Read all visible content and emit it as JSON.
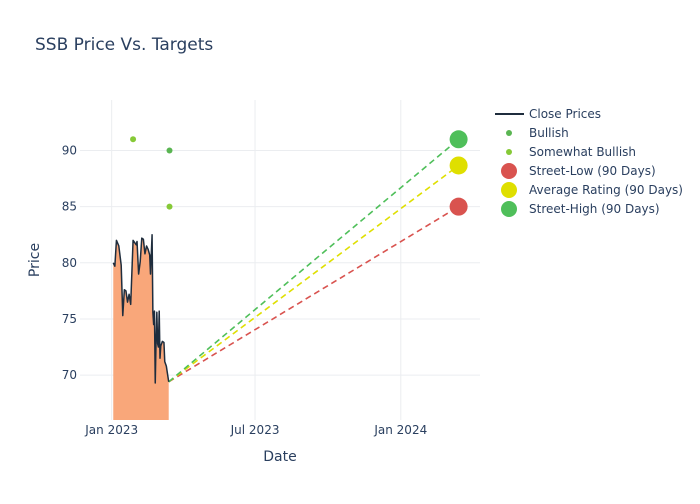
{
  "chart_data": {
    "type": "line",
    "title": "SSB Price Vs. Targets",
    "xlabel": "Date",
    "ylabel": "Price",
    "x_ticks": [
      "Jan 2023",
      "Jul 2023",
      "Jan 2024"
    ],
    "x_tick_dates": [
      "2023-01-01",
      "2023-07-01",
      "2024-01-01"
    ],
    "y_ticks": [
      70,
      75,
      80,
      85,
      90
    ],
    "xlim": [
      "2022-11-22",
      "2024-04-10"
    ],
    "ylim": [
      66,
      94.5
    ],
    "grid": true,
    "legend_position": "right",
    "colors": {
      "close_line": "#1f2d3d",
      "close_fill": "#f9a77a",
      "bullish": "#5ab552",
      "somewhat_bullish": "#86c937",
      "street_low": "#d9534f",
      "average": "#dfdf00",
      "street_high": "#4fbf5a"
    },
    "series": [
      {
        "name": "Close Prices",
        "kind": "line-area",
        "points": [
          [
            "2023-01-03",
            80.0
          ],
          [
            "2023-01-05",
            79.7
          ],
          [
            "2023-01-07",
            82.0
          ],
          [
            "2023-01-10",
            81.5
          ],
          [
            "2023-01-13",
            79.8
          ],
          [
            "2023-01-15",
            75.3
          ],
          [
            "2023-01-17",
            77.6
          ],
          [
            "2023-01-19",
            77.5
          ],
          [
            "2023-01-21",
            76.5
          ],
          [
            "2023-01-23",
            77.2
          ],
          [
            "2023-01-25",
            76.3
          ],
          [
            "2023-01-28",
            82.0
          ],
          [
            "2023-01-30",
            81.8
          ],
          [
            "2023-02-01",
            81.6
          ],
          [
            "2023-02-02",
            81.9
          ],
          [
            "2023-02-04",
            79.0
          ],
          [
            "2023-02-06",
            80.1
          ],
          [
            "2023-02-08",
            82.2
          ],
          [
            "2023-02-10",
            82.1
          ],
          [
            "2023-02-12",
            80.8
          ],
          [
            "2023-02-14",
            81.5
          ],
          [
            "2023-02-16",
            81.2
          ],
          [
            "2023-02-18",
            80.7
          ],
          [
            "2023-02-19",
            79.0
          ],
          [
            "2023-02-21",
            82.5
          ],
          [
            "2023-02-22",
            75.6
          ],
          [
            "2023-02-23",
            74.5
          ],
          [
            "2023-02-24",
            75.7
          ],
          [
            "2023-02-25",
            69.3
          ],
          [
            "2023-02-26",
            73.0
          ],
          [
            "2023-02-27",
            75.6
          ],
          [
            "2023-02-28",
            72.8
          ],
          [
            "2023-03-01",
            72.5
          ],
          [
            "2023-03-02",
            75.7
          ],
          [
            "2023-03-03",
            71.5
          ],
          [
            "2023-03-04",
            72.6
          ],
          [
            "2023-03-06",
            73.0
          ],
          [
            "2023-03-08",
            72.9
          ],
          [
            "2023-03-09",
            71.2
          ],
          [
            "2023-03-11",
            70.8
          ],
          [
            "2023-03-14",
            69.4
          ]
        ]
      },
      {
        "name": "Bullish",
        "kind": "markers",
        "points": [
          [
            "2023-03-15",
            90.0
          ]
        ]
      },
      {
        "name": "Somewhat Bullish",
        "kind": "markers",
        "points": [
          [
            "2023-01-28",
            91.0
          ],
          [
            "2023-03-15",
            85.0
          ]
        ]
      },
      {
        "name": "Street-Low (90 Days)",
        "kind": "target",
        "points": [
          [
            "2023-03-14",
            69.4
          ],
          [
            "2024-03-14",
            85.0
          ]
        ]
      },
      {
        "name": "Average Rating (90 Days)",
        "kind": "target",
        "points": [
          [
            "2023-03-14",
            69.4
          ],
          [
            "2024-03-14",
            88.67
          ]
        ]
      },
      {
        "name": "Street-High (90 Days)",
        "kind": "target",
        "points": [
          [
            "2023-03-14",
            69.4
          ],
          [
            "2024-03-14",
            91.0
          ]
        ]
      }
    ]
  }
}
